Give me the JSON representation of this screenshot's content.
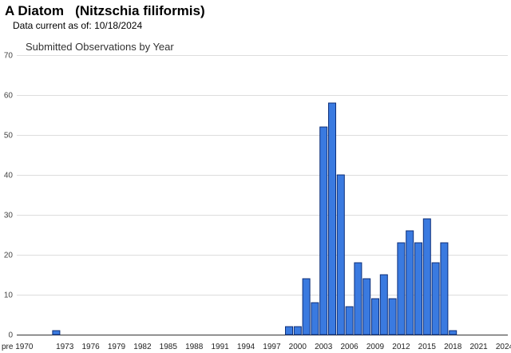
{
  "header": {
    "common_name": "A Diatom",
    "scientific_name": "(Nitzschia filiformis)",
    "data_current_label": "Data current as of:",
    "data_current_date": "10/18/2024"
  },
  "chart_data": {
    "type": "bar",
    "title": "Submitted Observations by Year",
    "xlabel": "",
    "ylabel": "",
    "ylim": [
      0,
      70
    ],
    "y_ticks": [
      0,
      10,
      20,
      30,
      40,
      50,
      60,
      70
    ],
    "grid": true,
    "legend": "none",
    "bar_color": "#3a7ae0",
    "bar_edge_color": "#0d2f7a",
    "x_tick_labels": [
      "pre 1970",
      "1973",
      "1976",
      "1979",
      "1982",
      "1985",
      "1988",
      "1991",
      "1994",
      "1997",
      "2000",
      "2003",
      "2006",
      "2009",
      "2012",
      "2015",
      "2018",
      "2021",
      "2024"
    ],
    "categories": [
      "pre 1970",
      "1970",
      "1971",
      "1972",
      "1973",
      "1974",
      "1975",
      "1976",
      "1977",
      "1978",
      "1979",
      "1980",
      "1981",
      "1982",
      "1983",
      "1984",
      "1985",
      "1986",
      "1987",
      "1988",
      "1989",
      "1990",
      "1991",
      "1992",
      "1993",
      "1994",
      "1995",
      "1996",
      "1997",
      "1998",
      "1999",
      "2000",
      "2001",
      "2002",
      "2003",
      "2004",
      "2005",
      "2006",
      "2007",
      "2008",
      "2009",
      "2010",
      "2011",
      "2012",
      "2013",
      "2014",
      "2015",
      "2016",
      "2017",
      "2018",
      "2019",
      "2020",
      "2021",
      "2022",
      "2023",
      "2024"
    ],
    "values": [
      0,
      0,
      0,
      1,
      0,
      0,
      0,
      0,
      0,
      0,
      0,
      0,
      0,
      0,
      0,
      0,
      0,
      0,
      0,
      0,
      0,
      0,
      0,
      0,
      0,
      0,
      0,
      0,
      0,
      0,
      2,
      2,
      14,
      8,
      52,
      58,
      40,
      7,
      18,
      14,
      9,
      15,
      9,
      23,
      26,
      23,
      29,
      18,
      23,
      1,
      0,
      0,
      0,
      0,
      0,
      0
    ]
  }
}
